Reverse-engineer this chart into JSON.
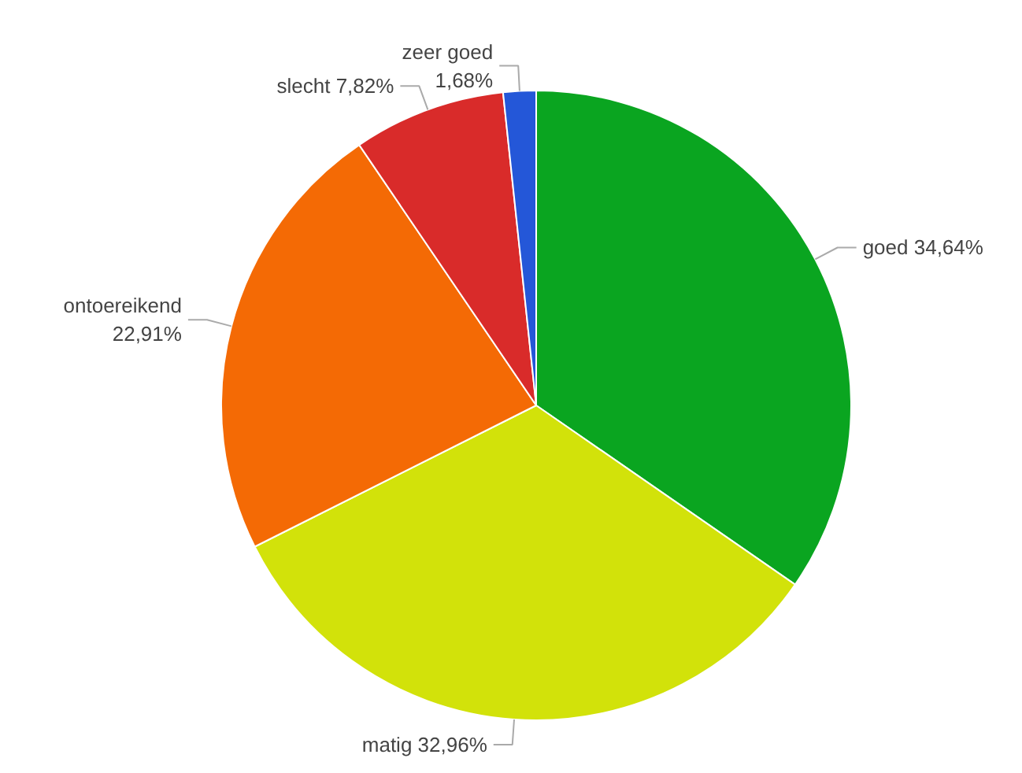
{
  "chart_data": {
    "type": "pie",
    "categories": [
      "goed",
      "matig",
      "ontoereikend",
      "slecht",
      "zeer goed"
    ],
    "values": [
      34.64,
      32.96,
      22.91,
      7.82,
      1.68
    ],
    "colors": [
      "#0aa520",
      "#d2e20a",
      "#f46a05",
      "#d92b2a",
      "#2457d8"
    ],
    "value_labels": [
      "34,64%",
      "32,96%",
      "22,91%",
      "7,82%",
      "1,68%"
    ]
  }
}
